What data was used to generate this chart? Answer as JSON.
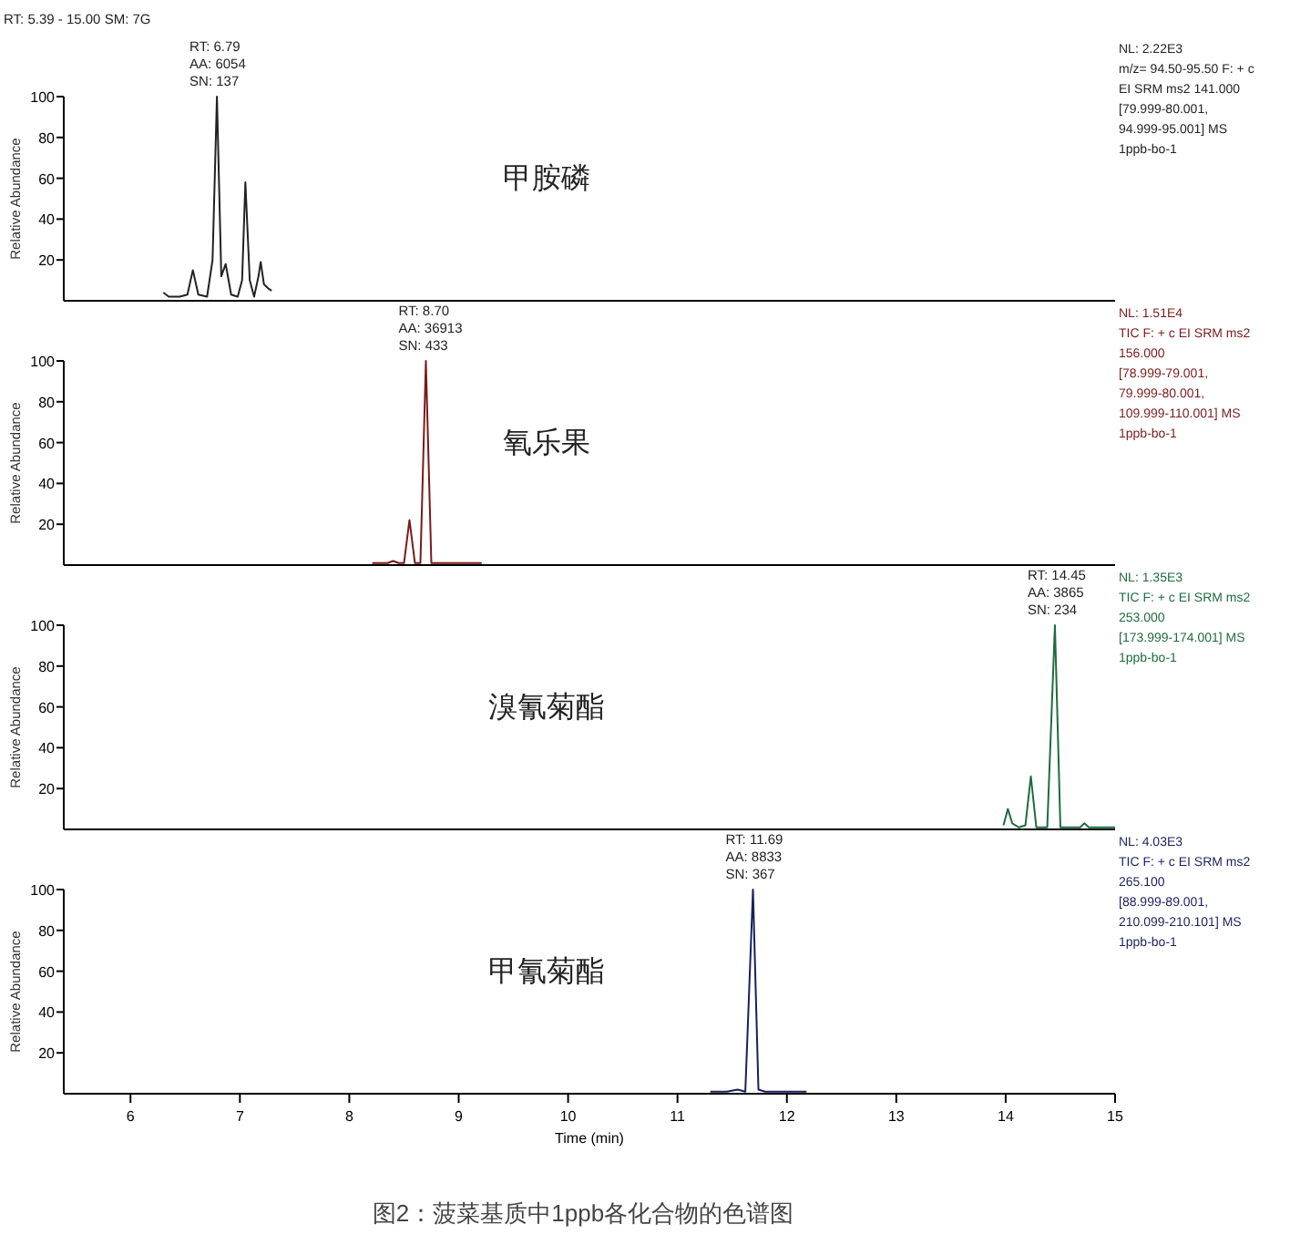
{
  "chart_data": [
    {
      "type": "line",
      "title": "甲胺磷",
      "subtitle": "NL: 2.22E3\nm/z= 94.50-95.50 F: + c\nEI SRM ms2 141.000\n[79.999-80.001,\n94.999-95.001]  MS\n1ppb-bo-1",
      "ylabel": "Relative Abundance",
      "xlim": [
        5.39,
        15.0
      ],
      "ylim": [
        0,
        100
      ],
      "xticks": [
        6,
        7,
        8,
        9,
        10,
        11,
        12,
        13,
        14,
        15
      ],
      "yticks": [
        20,
        40,
        60,
        80,
        100
      ],
      "tick_labels": "y",
      "annotations": [
        "RT: 5.39 - 15.00   SM: 7G",
        {
          "text": "RT: 6.79\nAA: 6054\nSN: 137",
          "x": 6.79,
          "y": 100
        }
      ],
      "series": [
        {
          "color": "#222222",
          "x": [
            6.3,
            6.35,
            6.45,
            6.52,
            6.57,
            6.62,
            6.7,
            6.75,
            6.79,
            6.83,
            6.87,
            6.92,
            6.98,
            7.02,
            7.05,
            7.09,
            7.13,
            7.17,
            7.19,
            7.22,
            7.26,
            7.29
          ],
          "values": [
            4,
            2,
            2,
            3,
            15,
            3,
            2,
            20,
            100,
            12,
            18,
            3,
            2,
            10,
            58,
            10,
            2,
            12,
            19,
            8,
            6,
            5
          ]
        }
      ]
    },
    {
      "type": "line",
      "title": "氧乐果",
      "subtitle": "NL: 1.51E4\nTIC F: + c EI SRM ms2\n156.000\n[78.999-79.001,\n79.999-80.001,\n109.999-110.001]  MS\n1ppb-bo-1",
      "ylabel": "Relative Abundance",
      "xlim": [
        5.39,
        15.0
      ],
      "ylim": [
        0,
        100
      ],
      "xticks": [
        6,
        7,
        8,
        9,
        10,
        11,
        12,
        13,
        14,
        15
      ],
      "yticks": [
        20,
        40,
        60,
        80,
        100
      ],
      "tick_labels": "y",
      "annotations": [
        {
          "text": "RT: 8.70\nAA: 36913\nSN: 433",
          "x": 8.7,
          "y": 100
        }
      ],
      "series": [
        {
          "color": "#7a1a1a",
          "x": [
            8.21,
            8.35,
            8.4,
            8.45,
            8.5,
            8.55,
            8.6,
            8.65,
            8.7,
            8.75,
            8.85,
            9.0,
            9.21
          ],
          "values": [
            1,
            1,
            2,
            1,
            1,
            22,
            1,
            1,
            100,
            1,
            1,
            1,
            1
          ]
        }
      ]
    },
    {
      "type": "line",
      "title": "溴氰菊酯",
      "subtitle": "NL: 1.35E3\nTIC F: + c EI SRM ms2\n253.000\n[173.999-174.001]  MS\n1ppb-bo-1",
      "ylabel": "Relative Abundance",
      "xlim": [
        5.39,
        15.0
      ],
      "ylim": [
        0,
        100
      ],
      "xticks": [
        6,
        7,
        8,
        9,
        10,
        11,
        12,
        13,
        14,
        15
      ],
      "yticks": [
        20,
        40,
        60,
        80,
        100
      ],
      "tick_labels": "y",
      "annotations": [
        {
          "text": "RT: 14.45\nAA: 3865\nSN: 234",
          "x": 14.45,
          "y": 100
        }
      ],
      "series": [
        {
          "color": "#1f6b3f",
          "x": [
            13.98,
            14.02,
            14.06,
            14.12,
            14.18,
            14.23,
            14.28,
            14.38,
            14.45,
            14.5,
            14.6,
            14.68,
            14.72,
            14.76,
            14.9,
            15.0
          ],
          "values": [
            2,
            10,
            3,
            1,
            2,
            26,
            1,
            1,
            100,
            1,
            1,
            1,
            3,
            1,
            1,
            1
          ]
        }
      ]
    },
    {
      "type": "line",
      "title": "甲氰菊酯",
      "subtitle": "NL: 4.03E3\nTIC F: + c EI SRM ms2\n265.100\n[88.999-89.001,\n210.099-210.101]  MS\n1ppb-bo-1",
      "xlabel": "Time (min)",
      "ylabel": "Relative Abundance",
      "xlim": [
        5.39,
        15.0
      ],
      "ylim": [
        0,
        100
      ],
      "xticks": [
        6,
        7,
        8,
        9,
        10,
        11,
        12,
        13,
        14,
        15
      ],
      "yticks": [
        20,
        40,
        60,
        80,
        100
      ],
      "annotations": [
        {
          "text": "RT: 11.69\nAA: 8833\nSN: 367",
          "x": 11.69,
          "y": 100
        },
        "图2：菠菜基质中1ppb各化合物的色谱图"
      ],
      "series": [
        {
          "color": "#1a1f5e",
          "x": [
            11.3,
            11.45,
            11.55,
            11.62,
            11.69,
            11.74,
            11.8,
            11.9,
            12.0,
            12.18
          ],
          "values": [
            1,
            1,
            2,
            1,
            100,
            2,
            1,
            1,
            1,
            1
          ]
        }
      ]
    }
  ]
}
